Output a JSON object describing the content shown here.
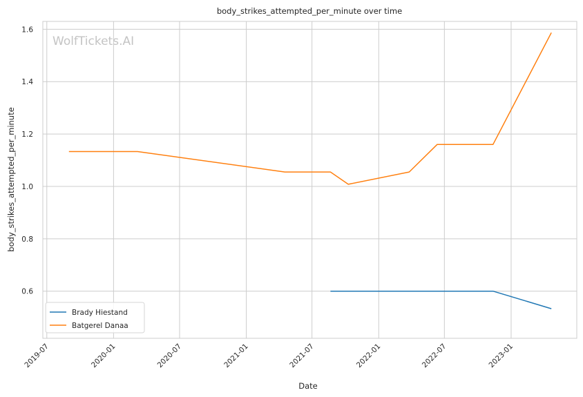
{
  "chart_data": {
    "type": "line",
    "title": "body_strikes_attempted_per_minute over time",
    "xlabel": "Date",
    "ylabel": "body_strikes_attempted_per_minute",
    "watermark": "WolfTickets.AI",
    "x_ticks": [
      "2019-07",
      "2020-01",
      "2020-07",
      "2021-01",
      "2021-07",
      "2022-01",
      "2022-07",
      "2023-01"
    ],
    "y_ticks": [
      "0.6",
      "0.8",
      "1.0",
      "1.2",
      "1.4",
      "1.6"
    ],
    "xlim": [
      "2019-06-20",
      "2023-07-01"
    ],
    "ylim": [
      0.42,
      1.63
    ],
    "grid": true,
    "legend_position": "lower-left",
    "series": [
      {
        "name": "Brady Hiestand",
        "color": "#1f77b4",
        "points": [
          {
            "x": "2021-08-21",
            "y": 0.6
          },
          {
            "x": "2022-11-12",
            "y": 0.6
          },
          {
            "x": "2023-04-22",
            "y": 0.533
          }
        ]
      },
      {
        "name": "Batgerel Danaa",
        "color": "#ff7f0e",
        "points": [
          {
            "x": "2019-08-31",
            "y": 1.133
          },
          {
            "x": "2020-03-07",
            "y": 1.133
          },
          {
            "x": "2021-04-17",
            "y": 1.055
          },
          {
            "x": "2021-08-21",
            "y": 1.055
          },
          {
            "x": "2021-10-09",
            "y": 1.008
          },
          {
            "x": "2022-03-26",
            "y": 1.055
          },
          {
            "x": "2022-06-11",
            "y": 1.16
          },
          {
            "x": "2022-11-12",
            "y": 1.16
          },
          {
            "x": "2023-04-22",
            "y": 1.587
          }
        ]
      }
    ]
  }
}
